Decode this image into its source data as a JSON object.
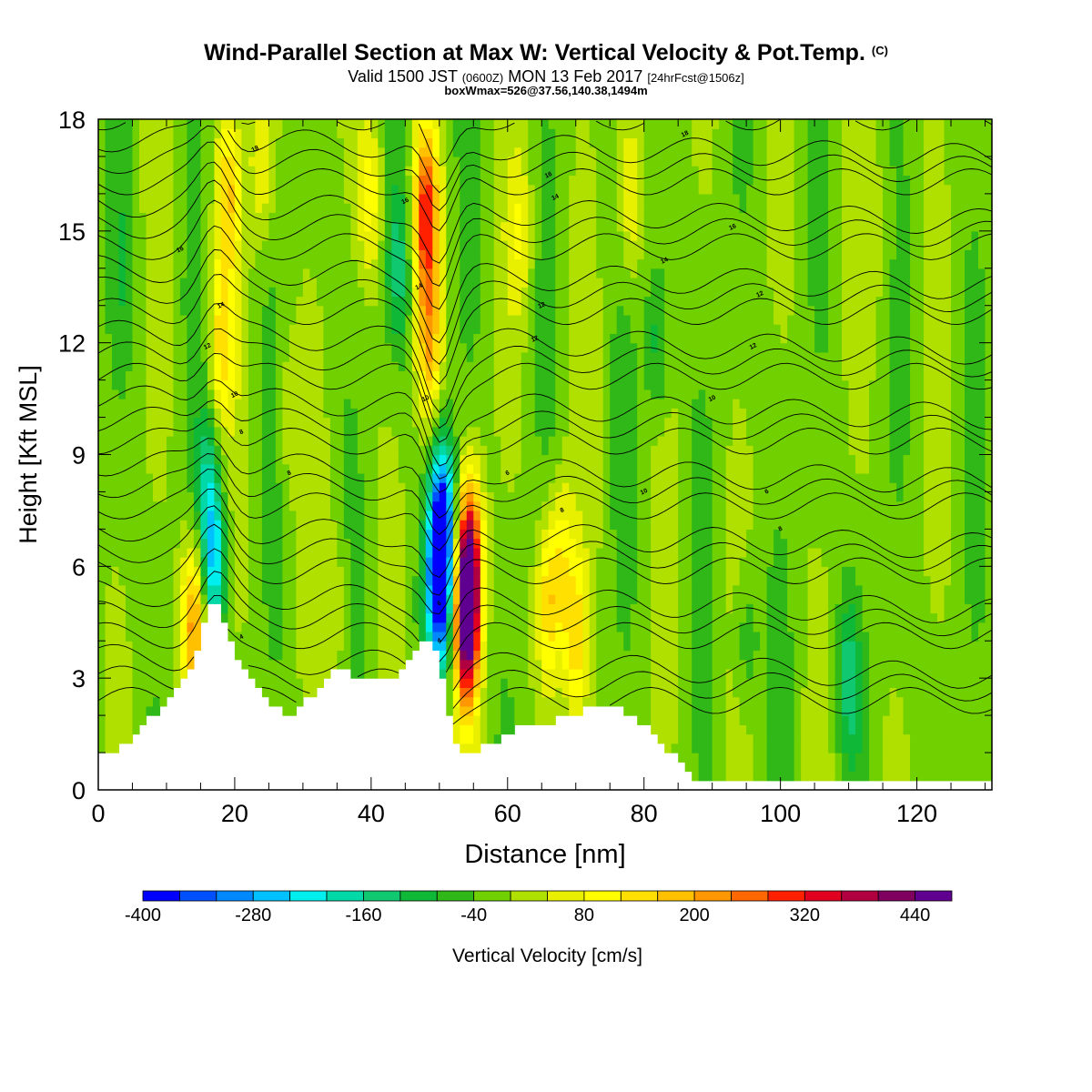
{
  "header": {
    "title": "Wind-Parallel Section at Max W: Vertical Velocity & Pot.Temp.",
    "title_mark": "(C)",
    "valid_prefix": "Valid 1500 JST",
    "valid_zulu": "(0600Z)",
    "valid_date": "MON 13 Feb 2017",
    "forecast": "[24hrFcst@1506z]",
    "box_info": "boxWmax=526@37.56,140.38,1494m"
  },
  "chart_data": {
    "type": "heatmap",
    "xlabel": "Distance [nm]",
    "ylabel": "Height [Kft MSL]",
    "xlim": [
      0,
      131
    ],
    "ylim": [
      0,
      18
    ],
    "x_ticks": [
      0,
      20,
      40,
      60,
      80,
      100,
      120
    ],
    "y_ticks": [
      0,
      3,
      6,
      9,
      12,
      15,
      18
    ],
    "colorbar": {
      "label": "Vertical Velocity [cm/s]",
      "tick_labels": [
        -400,
        -280,
        -160,
        -40,
        80,
        200,
        320,
        440
      ],
      "bins": [
        -400,
        -360,
        -320,
        -280,
        -240,
        -200,
        -160,
        -120,
        -80,
        -40,
        0,
        40,
        80,
        120,
        160,
        200,
        240,
        280,
        320,
        360,
        400,
        440,
        480
      ],
      "colors": [
        "#0000ff",
        "#0050ff",
        "#0088ff",
        "#00c0ff",
        "#00eeee",
        "#00d8a8",
        "#10c870",
        "#10b838",
        "#30b818",
        "#70d000",
        "#b0e000",
        "#e8f000",
        "#ffff00",
        "#ffe000",
        "#ffc000",
        "#ff9800",
        "#ff6800",
        "#ff2000",
        "#e00020",
        "#b00040",
        "#800060",
        "#600090"
      ]
    },
    "terrain_kft": [
      [
        0,
        0.9
      ],
      [
        2,
        1.0
      ],
      [
        4,
        1.3
      ],
      [
        6,
        1.6
      ],
      [
        8,
        2.0
      ],
      [
        10,
        2.4
      ],
      [
        12,
        2.8
      ],
      [
        14,
        3.4
      ],
      [
        15,
        4.2
      ],
      [
        16,
        4.8
      ],
      [
        17,
        5.1
      ],
      [
        18,
        4.8
      ],
      [
        19,
        4.2
      ],
      [
        20,
        3.8
      ],
      [
        21,
        3.4
      ],
      [
        22,
        3.0
      ],
      [
        24,
        2.6
      ],
      [
        26,
        2.3
      ],
      [
        28,
        2.0
      ],
      [
        30,
        2.3
      ],
      [
        32,
        2.7
      ],
      [
        34,
        3.2
      ],
      [
        36,
        3.2
      ],
      [
        38,
        3.0
      ],
      [
        40,
        3.0
      ],
      [
        42,
        3.0
      ],
      [
        44,
        3.1
      ],
      [
        46,
        3.6
      ],
      [
        48,
        4.2
      ],
      [
        49,
        4.0
      ],
      [
        50,
        3.4
      ],
      [
        51,
        2.5
      ],
      [
        52,
        1.5
      ],
      [
        53,
        1.2
      ],
      [
        54,
        1.0
      ],
      [
        56,
        1.1
      ],
      [
        58,
        1.3
      ],
      [
        60,
        1.5
      ],
      [
        62,
        1.7
      ],
      [
        66,
        1.8
      ],
      [
        70,
        2.1
      ],
      [
        74,
        2.2
      ],
      [
        76,
        2.2
      ],
      [
        78,
        2.0
      ],
      [
        80,
        1.8
      ],
      [
        82,
        1.4
      ],
      [
        84,
        1.0
      ],
      [
        86,
        0.6
      ],
      [
        88,
        0.3
      ],
      [
        100,
        0.3
      ],
      [
        131,
        0.3
      ]
    ],
    "w_features": [
      {
        "x": 48,
        "z": 15.5,
        "w": 300
      },
      {
        "x": 48.5,
        "z": 12,
        "w": 200
      },
      {
        "x": 50,
        "z": 5.5,
        "w": -400
      },
      {
        "x": 50.5,
        "z": 7.5,
        "w": -280
      },
      {
        "x": 54,
        "z": 4.5,
        "w": 480
      },
      {
        "x": 54.5,
        "z": 6.5,
        "w": 300
      },
      {
        "x": 66,
        "z": 5,
        "w": 160
      },
      {
        "x": 70,
        "z": 4,
        "w": 160
      },
      {
        "x": 68,
        "z": 6.5,
        "w": 100
      },
      {
        "x": 17,
        "z": 6,
        "w": -200
      },
      {
        "x": 16,
        "z": 8,
        "w": -120
      },
      {
        "x": 19,
        "z": 16,
        "w": 160
      },
      {
        "x": 18,
        "z": 12,
        "w": 140
      },
      {
        "x": 24,
        "z": 17,
        "w": 100
      },
      {
        "x": 14,
        "z": 4.5,
        "w": 240
      },
      {
        "x": 40,
        "z": 16,
        "w": 120
      },
      {
        "x": 44,
        "z": 14,
        "w": -120
      },
      {
        "x": 78,
        "z": 16,
        "w": 100
      },
      {
        "x": 62,
        "z": 15,
        "w": 80
      },
      {
        "x": 95,
        "z": 4,
        "w": -80
      },
      {
        "x": 110,
        "z": 3,
        "w": -120
      },
      {
        "x": 82,
        "z": 12,
        "w": -100
      },
      {
        "x": 115,
        "z": 15,
        "w": 40
      },
      {
        "x": 35,
        "z": 5,
        "w": 60
      },
      {
        "x": 4,
        "z": 14,
        "w": -40
      },
      {
        "x": 28,
        "z": 10,
        "w": 60
      }
    ],
    "theta_labels": [
      "18",
      "16",
      "16",
      "14",
      "16",
      "14",
      "12",
      "12",
      "10",
      "14",
      "12",
      "10",
      "10",
      "8",
      "8",
      "8",
      "6",
      "6",
      "4",
      "4",
      "12",
      "16",
      "14",
      "12",
      "10",
      "8",
      "6",
      "18"
    ]
  },
  "colorbar_label": "Vertical Velocity [cm/s]"
}
